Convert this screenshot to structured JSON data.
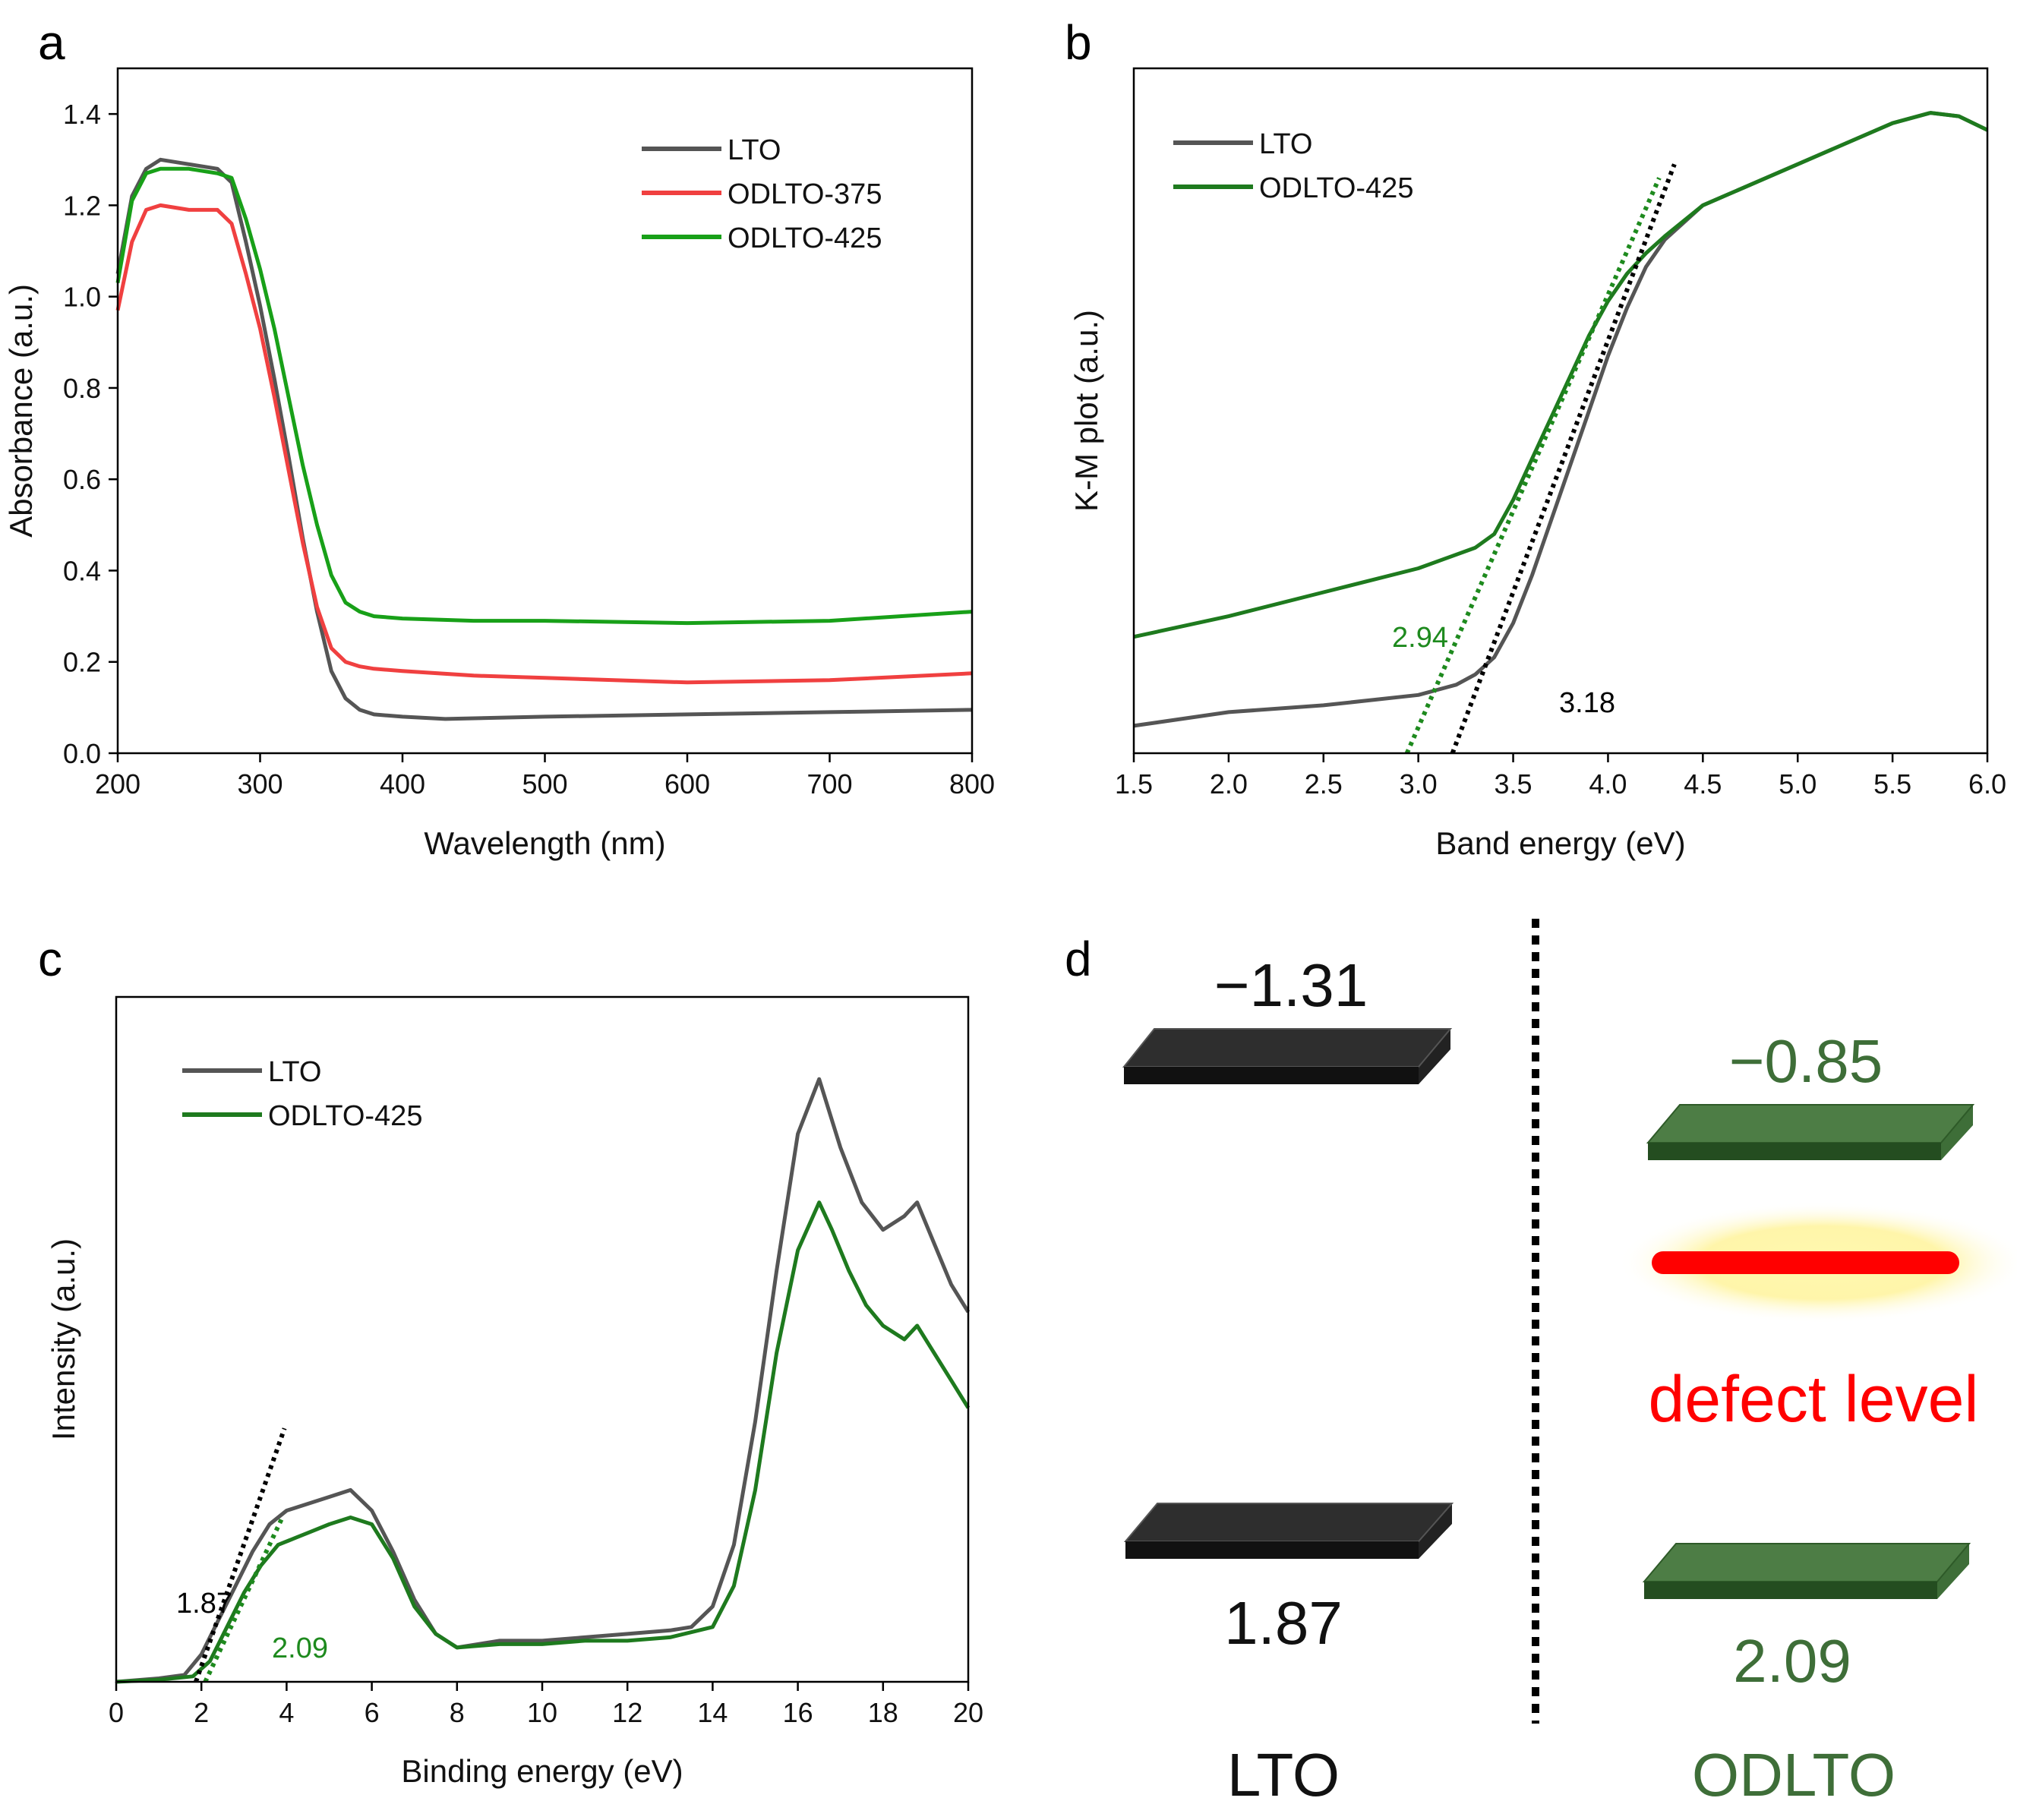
{
  "colors": {
    "lto": "#555555",
    "odlto375": "#f04040",
    "odlto425": "#18a018",
    "green_dark": "#1e7a1e",
    "green_band": "#3e6e38",
    "green_band_dark": "#244d20",
    "black_band": "#222222",
    "defect_red": "#ff0000",
    "glow": "#fff3a0",
    "fit_black": "#000000",
    "fit_green": "#1e8a1e"
  },
  "panels": {
    "a": {
      "letter": "a"
    },
    "b": {
      "letter": "b"
    },
    "c": {
      "letter": "c"
    },
    "d": {
      "letter": "d"
    }
  },
  "chart_data": [
    {
      "id": "a",
      "type": "line",
      "xlabel": "Wavelength (nm)",
      "ylabel": "Absorbance (a.u.)",
      "xlim": [
        200,
        800
      ],
      "ylim": [
        0,
        1.5
      ],
      "xticks": [
        200,
        300,
        400,
        500,
        600,
        700,
        800
      ],
      "yticks": [
        0.0,
        0.2,
        0.4,
        0.6,
        0.8,
        1.0,
        1.2,
        1.4
      ],
      "ytick_labels": [
        "0.0",
        "0.2",
        "0.4",
        "0.6",
        "0.8",
        "1.0",
        "1.2",
        "1.4"
      ],
      "legend": [
        "LTO",
        "ODLTO-375",
        "ODLTO-425"
      ],
      "series": [
        {
          "name": "LTO",
          "color_key": "lto",
          "x": [
            200,
            210,
            220,
            230,
            250,
            270,
            280,
            290,
            300,
            310,
            320,
            330,
            340,
            350,
            360,
            370,
            380,
            400,
            430,
            500,
            600,
            700,
            800
          ],
          "y": [
            1.05,
            1.22,
            1.28,
            1.3,
            1.29,
            1.28,
            1.25,
            1.12,
            0.98,
            0.82,
            0.65,
            0.47,
            0.31,
            0.18,
            0.12,
            0.095,
            0.085,
            0.08,
            0.075,
            0.08,
            0.085,
            0.09,
            0.095
          ]
        },
        {
          "name": "ODLTO-375",
          "color_key": "odlto375",
          "x": [
            200,
            210,
            220,
            230,
            250,
            270,
            280,
            290,
            300,
            310,
            320,
            330,
            340,
            350,
            360,
            370,
            380,
            400,
            450,
            500,
            600,
            700,
            800
          ],
          "y": [
            0.97,
            1.12,
            1.19,
            1.2,
            1.19,
            1.19,
            1.16,
            1.05,
            0.93,
            0.78,
            0.62,
            0.46,
            0.32,
            0.23,
            0.2,
            0.19,
            0.185,
            0.18,
            0.17,
            0.165,
            0.155,
            0.16,
            0.175
          ]
        },
        {
          "name": "ODLTO-425",
          "color_key": "odlto425",
          "x": [
            200,
            210,
            220,
            230,
            250,
            270,
            280,
            290,
            300,
            310,
            320,
            330,
            340,
            350,
            360,
            370,
            380,
            400,
            450,
            500,
            600,
            700,
            800
          ],
          "y": [
            1.03,
            1.21,
            1.27,
            1.28,
            1.28,
            1.27,
            1.26,
            1.17,
            1.06,
            0.93,
            0.78,
            0.63,
            0.5,
            0.39,
            0.33,
            0.31,
            0.3,
            0.295,
            0.29,
            0.29,
            0.285,
            0.29,
            0.31
          ]
        }
      ]
    },
    {
      "id": "b",
      "type": "line",
      "xlabel": "Band energy (eV)",
      "ylabel": "K-M plot (a.u.)",
      "xlim": [
        1.5,
        6.0
      ],
      "ylim": [
        0,
        1
      ],
      "xticks": [
        1.5,
        2.0,
        2.5,
        3.0,
        3.5,
        4.0,
        4.5,
        5.0,
        5.5,
        6.0
      ],
      "xtick_labels": [
        "1.5",
        "2.0",
        "2.5",
        "3.0",
        "3.5",
        "4.0",
        "4.5",
        "5.0",
        "5.5",
        "6.0"
      ],
      "legend": [
        "LTO",
        "ODLTO-425"
      ],
      "series": [
        {
          "name": "LTO",
          "color_key": "lto",
          "x": [
            1.5,
            2.0,
            2.5,
            3.0,
            3.2,
            3.3,
            3.4,
            3.5,
            3.6,
            3.7,
            3.8,
            3.9,
            4.0,
            4.1,
            4.2,
            4.3,
            4.5,
            5.0,
            5.5,
            5.7,
            5.85,
            6.0
          ],
          "y": [
            0.04,
            0.06,
            0.07,
            0.085,
            0.1,
            0.115,
            0.14,
            0.19,
            0.26,
            0.34,
            0.42,
            0.5,
            0.58,
            0.65,
            0.71,
            0.75,
            0.8,
            0.86,
            0.92,
            0.935,
            0.93,
            0.91
          ]
        },
        {
          "name": "ODLTO-425",
          "color_key": "odlto425_dark",
          "x": [
            1.5,
            2.0,
            2.5,
            3.0,
            3.3,
            3.4,
            3.5,
            3.6,
            3.7,
            3.8,
            3.9,
            4.0,
            4.1,
            4.2,
            4.3,
            4.5,
            5.0,
            5.5,
            5.7,
            5.85,
            6.0
          ],
          "y": [
            0.17,
            0.2,
            0.235,
            0.27,
            0.3,
            0.32,
            0.37,
            0.43,
            0.49,
            0.55,
            0.61,
            0.66,
            0.7,
            0.73,
            0.755,
            0.8,
            0.86,
            0.92,
            0.935,
            0.93,
            0.91
          ]
        }
      ],
      "fits": [
        {
          "label": "2.94",
          "color_key": "fit_green",
          "x0": 2.94,
          "y0": 0.0,
          "x1": 4.27,
          "y1": 0.84
        },
        {
          "label": "3.18",
          "color_key": "fit_black",
          "x0": 3.18,
          "y0": 0.0,
          "x1": 4.35,
          "y1": 0.86
        }
      ]
    },
    {
      "id": "c",
      "type": "line",
      "xlabel": "Binding energy (eV)",
      "ylabel": "Intensity (a.u.)",
      "xlim": [
        0,
        20
      ],
      "ylim": [
        0,
        1
      ],
      "xticks": [
        0,
        2,
        4,
        6,
        8,
        10,
        12,
        14,
        16,
        18,
        20
      ],
      "legend": [
        "LTO",
        "ODLTO-425"
      ],
      "series": [
        {
          "name": "LTO",
          "color_key": "lto",
          "x": [
            0,
            1,
            1.6,
            2.0,
            2.4,
            2.8,
            3.2,
            3.6,
            4.0,
            4.5,
            5.0,
            5.5,
            6.0,
            6.5,
            7.0,
            7.5,
            8.0,
            9.0,
            10.0,
            11.0,
            12.0,
            13.0,
            13.5,
            14.0,
            14.5,
            15.0,
            15.5,
            16.0,
            16.5,
            17.0,
            17.5,
            18.0,
            18.5,
            18.8,
            19.2,
            19.6,
            20.0
          ],
          "y": [
            0.0,
            0.005,
            0.01,
            0.04,
            0.09,
            0.14,
            0.19,
            0.23,
            0.25,
            0.26,
            0.27,
            0.28,
            0.25,
            0.19,
            0.12,
            0.07,
            0.05,
            0.06,
            0.06,
            0.065,
            0.07,
            0.075,
            0.08,
            0.11,
            0.2,
            0.38,
            0.6,
            0.8,
            0.88,
            0.78,
            0.7,
            0.66,
            0.68,
            0.7,
            0.64,
            0.58,
            0.54
          ]
        },
        {
          "name": "ODLTO-425",
          "color_key": "odlto425_dark",
          "x": [
            0,
            1,
            1.8,
            2.2,
            2.6,
            3.0,
            3.4,
            3.8,
            4.2,
            4.6,
            5.0,
            5.5,
            6.0,
            6.5,
            7.0,
            7.5,
            8.0,
            9.0,
            10.0,
            11.0,
            12.0,
            13.0,
            14.0,
            14.5,
            15.0,
            15.5,
            16.0,
            16.5,
            16.8,
            17.2,
            17.6,
            18.0,
            18.5,
            18.8,
            19.2,
            19.6,
            20.0
          ],
          "y": [
            0.0,
            0.003,
            0.008,
            0.03,
            0.08,
            0.13,
            0.17,
            0.2,
            0.21,
            0.22,
            0.23,
            0.24,
            0.23,
            0.18,
            0.11,
            0.07,
            0.05,
            0.055,
            0.055,
            0.06,
            0.06,
            0.065,
            0.08,
            0.14,
            0.28,
            0.48,
            0.63,
            0.7,
            0.66,
            0.6,
            0.55,
            0.52,
            0.5,
            0.52,
            0.48,
            0.44,
            0.4
          ]
        }
      ],
      "fits": [
        {
          "label": "1.87",
          "color_key": "fit_black",
          "x0": 1.87,
          "y0": 0.0,
          "x1": 3.95,
          "y1": 0.37
        },
        {
          "label": "2.09",
          "color_key": "fit_green",
          "x0": 2.09,
          "y0": 0.0,
          "x1": 3.9,
          "y1": 0.24
        }
      ]
    },
    {
      "id": "d",
      "type": "diagram",
      "lto": {
        "cb": "−1.31",
        "vb": "1.87",
        "label": "LTO"
      },
      "odlto": {
        "cb": "−0.85",
        "vb": "2.09",
        "label": "ODLTO",
        "defect_label": "defect level"
      }
    }
  ]
}
